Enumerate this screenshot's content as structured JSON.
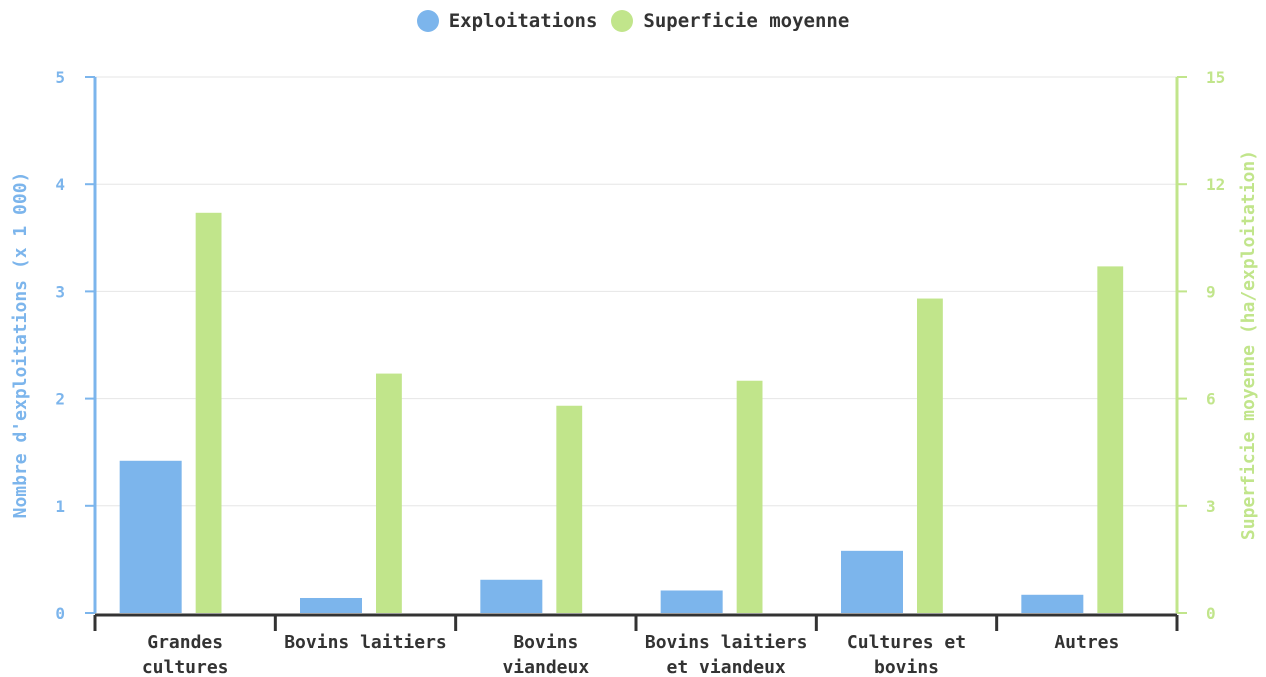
{
  "colors": {
    "exploitations": "#7cb5ec",
    "superficie": "#c1e58b",
    "grid": "#e6e6e6",
    "axis": "#333333",
    "text": "#333333"
  },
  "chart_data": {
    "type": "bar",
    "categories": [
      [
        "Grandes",
        "cultures"
      ],
      [
        "Bovins laitiers"
      ],
      [
        "Bovins",
        "viandeux"
      ],
      [
        "Bovins laitiers",
        "et viandeux"
      ],
      [
        "Cultures et",
        "bovins"
      ],
      [
        "Autres"
      ]
    ],
    "series": [
      {
        "name": "Exploitations",
        "axis": "left",
        "values": [
          1.42,
          0.14,
          0.31,
          0.21,
          0.58,
          0.17
        ]
      },
      {
        "name": "Superficie moyenne",
        "axis": "right",
        "values": [
          11.2,
          6.7,
          5.8,
          6.5,
          8.8,
          9.7
        ]
      }
    ],
    "y_left": {
      "label": "Nombre d'exploitations (x 1 000)",
      "min": 0,
      "max": 5,
      "ticks": [
        "0",
        "1",
        "2",
        "3",
        "4",
        "5"
      ]
    },
    "y_right": {
      "label": "Superficie moyenne (ha/exploitation)",
      "min": 0,
      "max": 15,
      "ticks": [
        "0",
        "3",
        "6",
        "9",
        "12",
        "15"
      ]
    },
    "grid": true,
    "legend_position": "top-center"
  }
}
